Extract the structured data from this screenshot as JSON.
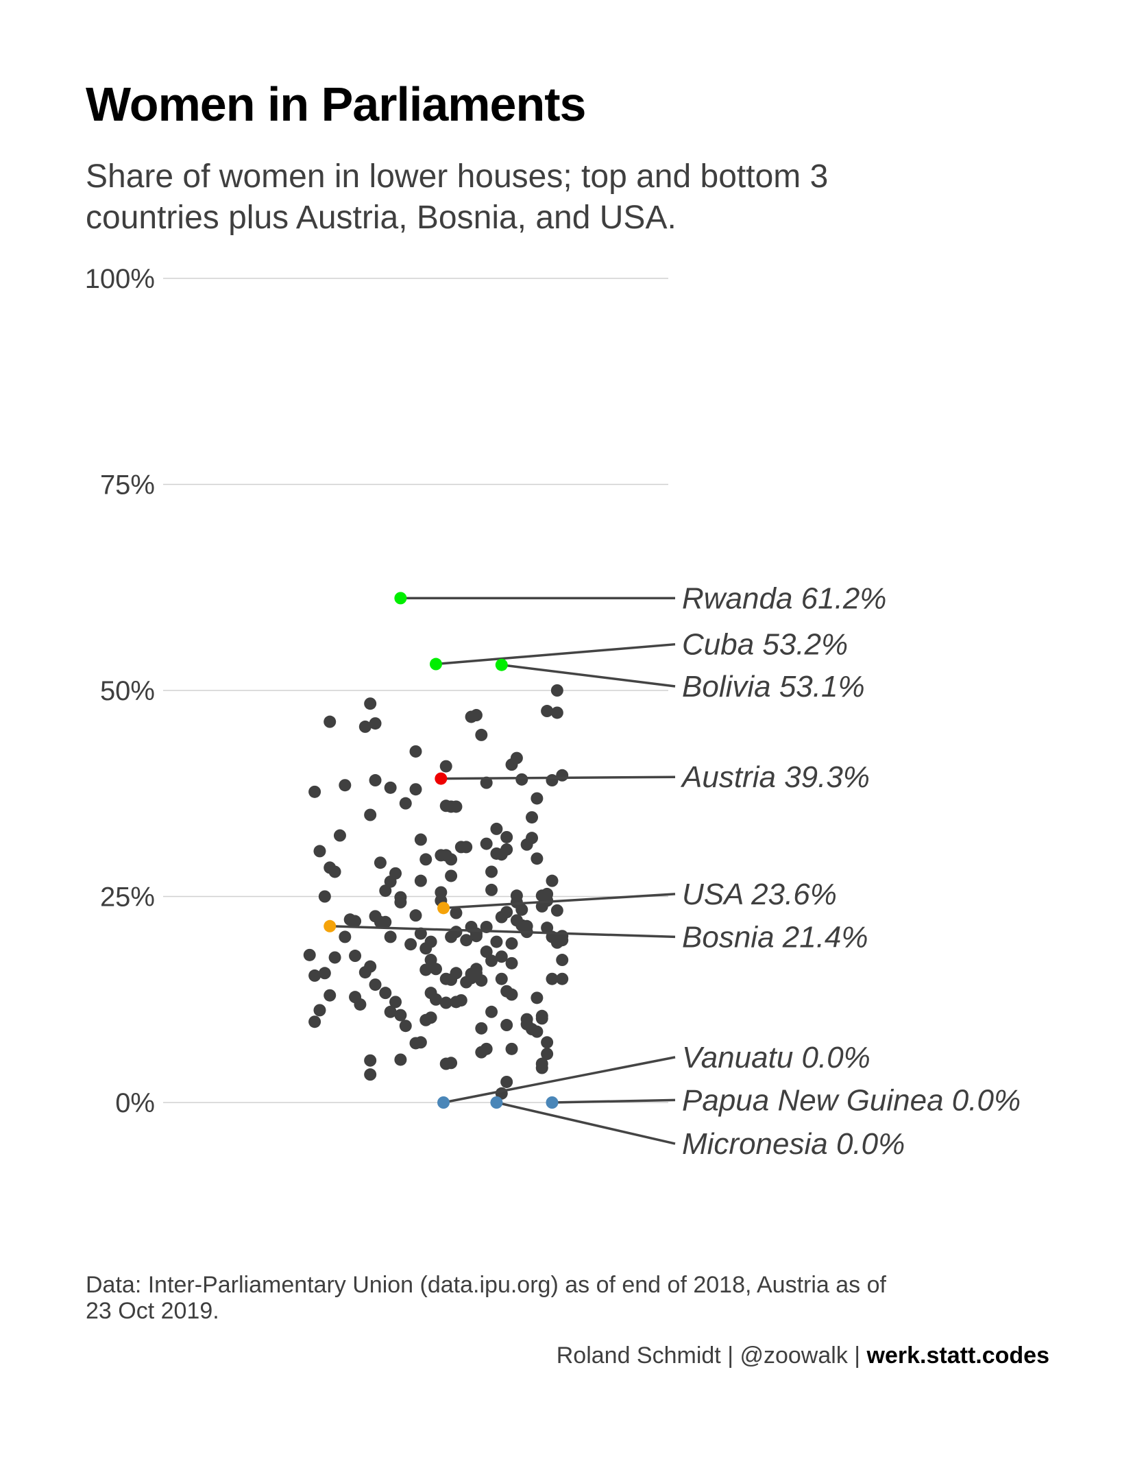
{
  "title": "Women in Parliaments",
  "subtitle": [
    "Share of women in lower houses; top and bottom 3",
    "countries plus Austria, Bosnia, and USA."
  ],
  "caption": [
    "Data: Inter-Parliamentary Union (data.ipu.org) as of end of 2018, Austria as of",
    "23 Oct 2019."
  ],
  "byline": {
    "name": "Roland Schmidt | @zoowalk | ",
    "site": "werk.statt.codes"
  },
  "colors": {
    "top": "#00ee00",
    "bottom": "#4a86b8",
    "mid": "#f5a30a",
    "austria": "#ee0000",
    "other": "#404040",
    "grid": "#d0d0d0",
    "text": "#3f3f3f"
  },
  "chart_data": {
    "type": "scatter",
    "title": "Women in Parliaments",
    "xlabel": "",
    "ylabel": "",
    "ylim": [
      0,
      100
    ],
    "grid": true,
    "y_ticks": [
      {
        "value": 0,
        "label": "0%"
      },
      {
        "value": 25,
        "label": "25%"
      },
      {
        "value": 50,
        "label": "50%"
      },
      {
        "value": 75,
        "label": "75%"
      },
      {
        "value": 100,
        "label": "100%"
      }
    ],
    "highlighted": [
      {
        "country": "Rwanda",
        "label": "Rwanda 61.2%",
        "y": 61.2,
        "jitter": 0.47,
        "group": "top",
        "label_y": 61.2
      },
      {
        "country": "Cuba",
        "label": "Cuba 53.2%",
        "y": 53.2,
        "jitter": 0.54,
        "group": "top",
        "label_y": 55.6
      },
      {
        "country": "Bolivia",
        "label": "Bolivia  53.1%",
        "y": 53.1,
        "jitter": 0.67,
        "group": "top",
        "label_y": 50.5
      },
      {
        "country": "Austria",
        "label": "Austria 39.3%",
        "y": 39.3,
        "jitter": 0.55,
        "group": "austria",
        "label_y": 39.5
      },
      {
        "country": "USA",
        "label": "USA 23.6%",
        "y": 23.6,
        "jitter": 0.555,
        "group": "mid",
        "label_y": 25.3
      },
      {
        "country": "Bosnia",
        "label": "Bosnia 21.4%",
        "y": 21.4,
        "jitter": 0.33,
        "group": "mid",
        "label_y": 20.1
      },
      {
        "country": "Vanuatu",
        "label": "Vanuatu 0.0%",
        "y": 0.0,
        "jitter": 0.555,
        "group": "bottom",
        "label_y": 5.5
      },
      {
        "country": "Papua New Guinea",
        "label": "Papua New Guinea 0.0%",
        "y": 0.0,
        "jitter": 0.77,
        "group": "bottom",
        "label_y": 0.3
      },
      {
        "country": "Micronesia",
        "label": "Micronesia  0.0%",
        "y": 0.0,
        "jitter": 0.66,
        "group": "bottom",
        "label_y": -5.0
      }
    ],
    "others": [
      [
        0.3,
        37.7
      ],
      [
        0.31,
        30.5
      ],
      [
        0.33,
        28.5
      ],
      [
        0.34,
        28
      ],
      [
        0.32,
        25
      ],
      [
        0.29,
        17.9
      ],
      [
        0.3,
        15.4
      ],
      [
        0.32,
        15.7
      ],
      [
        0.31,
        11.2
      ],
      [
        0.3,
        9.8
      ],
      [
        0.33,
        13
      ],
      [
        0.34,
        17.6
      ],
      [
        0.33,
        46.2
      ],
      [
        0.36,
        38.5
      ],
      [
        0.35,
        32.4
      ],
      [
        0.37,
        22.2
      ],
      [
        0.36,
        20.1
      ],
      [
        0.38,
        22
      ],
      [
        0.38,
        17.8
      ],
      [
        0.38,
        12.8
      ],
      [
        0.39,
        11.9
      ],
      [
        0.41,
        16.5
      ],
      [
        0.4,
        15.8
      ],
      [
        0.42,
        14.3
      ],
      [
        0.41,
        5.1
      ],
      [
        0.41,
        3.4
      ],
      [
        0.4,
        45.6
      ],
      [
        0.42,
        46
      ],
      [
        0.41,
        48.4
      ],
      [
        0.42,
        39.1
      ],
      [
        0.41,
        34.9
      ],
      [
        0.43,
        29.1
      ],
      [
        0.42,
        22.6
      ],
      [
        0.43,
        21.9
      ],
      [
        0.44,
        21.9
      ],
      [
        0.44,
        25.7
      ],
      [
        0.45,
        38.2
      ],
      [
        0.45,
        26.8
      ],
      [
        0.46,
        27.8
      ],
      [
        0.47,
        24.9
      ],
      [
        0.47,
        24.3
      ],
      [
        0.45,
        20.1
      ],
      [
        0.44,
        13.3
      ],
      [
        0.45,
        11
      ],
      [
        0.47,
        10.6
      ],
      [
        0.48,
        9.3
      ],
      [
        0.46,
        12.2
      ],
      [
        0.47,
        5.2
      ],
      [
        0.48,
        36.3
      ],
      [
        0.49,
        19.2
      ],
      [
        0.5,
        42.6
      ],
      [
        0.5,
        38
      ],
      [
        0.51,
        31.9
      ],
      [
        0.51,
        26.9
      ],
      [
        0.52,
        29.5
      ],
      [
        0.5,
        22.7
      ],
      [
        0.51,
        20.5
      ],
      [
        0.53,
        19.5
      ],
      [
        0.52,
        18.7
      ],
      [
        0.51,
        7.3
      ],
      [
        0.5,
        7.2
      ],
      [
        0.52,
        10
      ],
      [
        0.53,
        10.3
      ],
      [
        0.53,
        13.3
      ],
      [
        0.54,
        12.5
      ],
      [
        0.52,
        16.1
      ],
      [
        0.53,
        17.3
      ],
      [
        0.54,
        16.2
      ],
      [
        0.55,
        25.5
      ],
      [
        0.55,
        24.5
      ],
      [
        0.55,
        30
      ],
      [
        0.56,
        30
      ],
      [
        0.56,
        36
      ],
      [
        0.56,
        40.8
      ],
      [
        0.57,
        35.9
      ],
      [
        0.57,
        29.5
      ],
      [
        0.57,
        27.5
      ],
      [
        0.58,
        23
      ],
      [
        0.58,
        20.7
      ],
      [
        0.57,
        20.1
      ],
      [
        0.56,
        15
      ],
      [
        0.57,
        14.9
      ],
      [
        0.58,
        15.7
      ],
      [
        0.58,
        12.2
      ],
      [
        0.59,
        12.4
      ],
      [
        0.6,
        14.6
      ],
      [
        0.61,
        15.1
      ],
      [
        0.61,
        15.6
      ],
      [
        0.62,
        16.2
      ],
      [
        0.62,
        15.7
      ],
      [
        0.6,
        19.7
      ],
      [
        0.62,
        20.5
      ],
      [
        0.61,
        21.3
      ],
      [
        0.62,
        20.2
      ],
      [
        0.64,
        21.3
      ],
      [
        0.64,
        18.3
      ],
      [
        0.65,
        17.2
      ],
      [
        0.63,
        14.8
      ],
      [
        0.65,
        11
      ],
      [
        0.63,
        9
      ],
      [
        0.63,
        6.1
      ],
      [
        0.64,
        6.5
      ],
      [
        0.57,
        4.8
      ],
      [
        0.58,
        35.9
      ],
      [
        0.6,
        31
      ],
      [
        0.59,
        31
      ],
      [
        0.61,
        46.8
      ],
      [
        0.62,
        47
      ],
      [
        0.63,
        44.6
      ],
      [
        0.64,
        38.8
      ],
      [
        0.64,
        31.4
      ],
      [
        0.65,
        28
      ],
      [
        0.65,
        25.8
      ],
      [
        0.66,
        33.2
      ],
      [
        0.66,
        30.2
      ],
      [
        0.67,
        30.1
      ],
      [
        0.68,
        32.2
      ],
      [
        0.68,
        30.7
      ],
      [
        0.66,
        19.5
      ],
      [
        0.67,
        17.7
      ],
      [
        0.67,
        15
      ],
      [
        0.68,
        13.5
      ],
      [
        0.69,
        13.1
      ],
      [
        0.69,
        16.9
      ],
      [
        0.69,
        19.3
      ],
      [
        0.67,
        22.5
      ],
      [
        0.68,
        23.1
      ],
      [
        0.7,
        22.1
      ],
      [
        0.71,
        21.5
      ],
      [
        0.72,
        21.4
      ],
      [
        0.72,
        20.7
      ],
      [
        0.7,
        24.3
      ],
      [
        0.7,
        25.1
      ],
      [
        0.71,
        23.4
      ],
      [
        0.69,
        41
      ],
      [
        0.7,
        41.8
      ],
      [
        0.71,
        39.2
      ],
      [
        0.72,
        31.3
      ],
      [
        0.73,
        32.1
      ],
      [
        0.73,
        34.6
      ],
      [
        0.74,
        36.9
      ],
      [
        0.74,
        29.6
      ],
      [
        0.75,
        25.1
      ],
      [
        0.76,
        25.3
      ],
      [
        0.76,
        24.5
      ],
      [
        0.75,
        23.8
      ],
      [
        0.77,
        26.9
      ],
      [
        0.76,
        21.2
      ],
      [
        0.78,
        23.3
      ],
      [
        0.77,
        20.1
      ],
      [
        0.78,
        19.4
      ],
      [
        0.79,
        19.7
      ],
      [
        0.79,
        20.2
      ],
      [
        0.79,
        17.3
      ],
      [
        0.79,
        15
      ],
      [
        0.77,
        15
      ],
      [
        0.74,
        12.7
      ],
      [
        0.75,
        10.5
      ],
      [
        0.75,
        10.2
      ],
      [
        0.73,
        8.9
      ],
      [
        0.74,
        8.6
      ],
      [
        0.72,
        9.5
      ],
      [
        0.72,
        10.1
      ],
      [
        0.68,
        9.4
      ],
      [
        0.69,
        6.5
      ],
      [
        0.76,
        7.3
      ],
      [
        0.76,
        5.9
      ],
      [
        0.75,
        4.7
      ],
      [
        0.75,
        4.2
      ],
      [
        0.67,
        1.1
      ],
      [
        0.68,
        2.5
      ],
      [
        0.78,
        50
      ],
      [
        0.76,
        47.5
      ],
      [
        0.78,
        47.3
      ],
      [
        0.77,
        39.1
      ],
      [
        0.79,
        39.7
      ],
      [
        0.56,
        4.7
      ],
      [
        0.56,
        12.1
      ]
    ]
  }
}
